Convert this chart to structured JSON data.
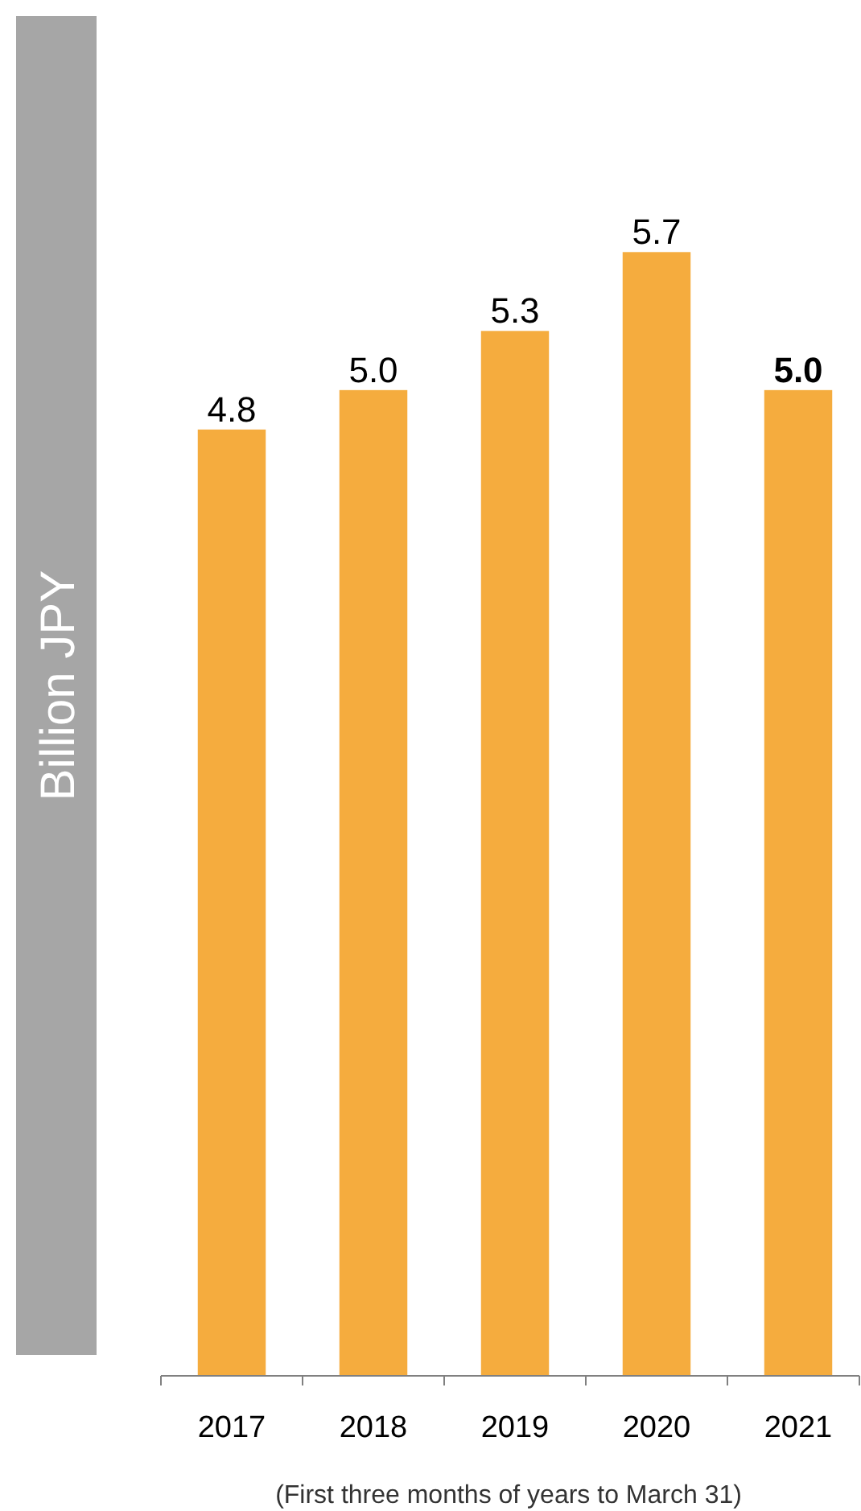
{
  "chart_data": {
    "type": "bar",
    "ylabel": "Billion JPY",
    "categories": [
      "2017",
      "2018",
      "2019",
      "2020",
      "2021"
    ],
    "values": [
      4.8,
      5.0,
      5.3,
      5.7,
      5.0
    ],
    "color": "#f5ac3e",
    "value_labels": [
      "4.8",
      "5.0",
      "5.3",
      "5.7",
      "5.0"
    ],
    "annotations": [
      "(First three months of years to March 31)"
    ]
  }
}
